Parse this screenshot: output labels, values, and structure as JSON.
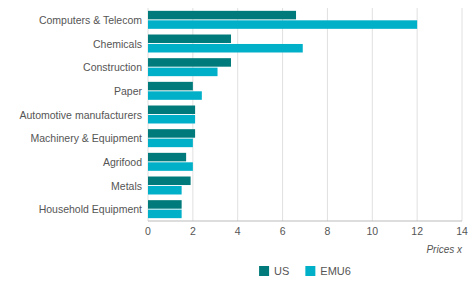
{
  "chart_data": {
    "type": "bar",
    "orientation": "horizontal",
    "categories": [
      "Computers & Telecom",
      "Chemicals",
      "Construction",
      "Paper",
      "Automotive manufacturers",
      "Machinery & Equipment",
      "Agrifood",
      "Metals",
      "Household Equipment"
    ],
    "series": [
      {
        "name": "US",
        "color": "#007a7a",
        "values": [
          6.6,
          3.7,
          3.7,
          2.0,
          2.1,
          2.1,
          1.7,
          1.9,
          1.5
        ]
      },
      {
        "name": "EMU6",
        "color": "#00b0c8",
        "values": [
          12.0,
          6.9,
          3.1,
          2.4,
          2.1,
          2.0,
          2.0,
          1.5,
          1.5
        ]
      }
    ],
    "xlabel": "Prices x",
    "xlim": [
      0,
      14
    ],
    "xticks": [
      0,
      2,
      4,
      6,
      8,
      10,
      12,
      14
    ],
    "grid": true,
    "legend": "bottom"
  }
}
